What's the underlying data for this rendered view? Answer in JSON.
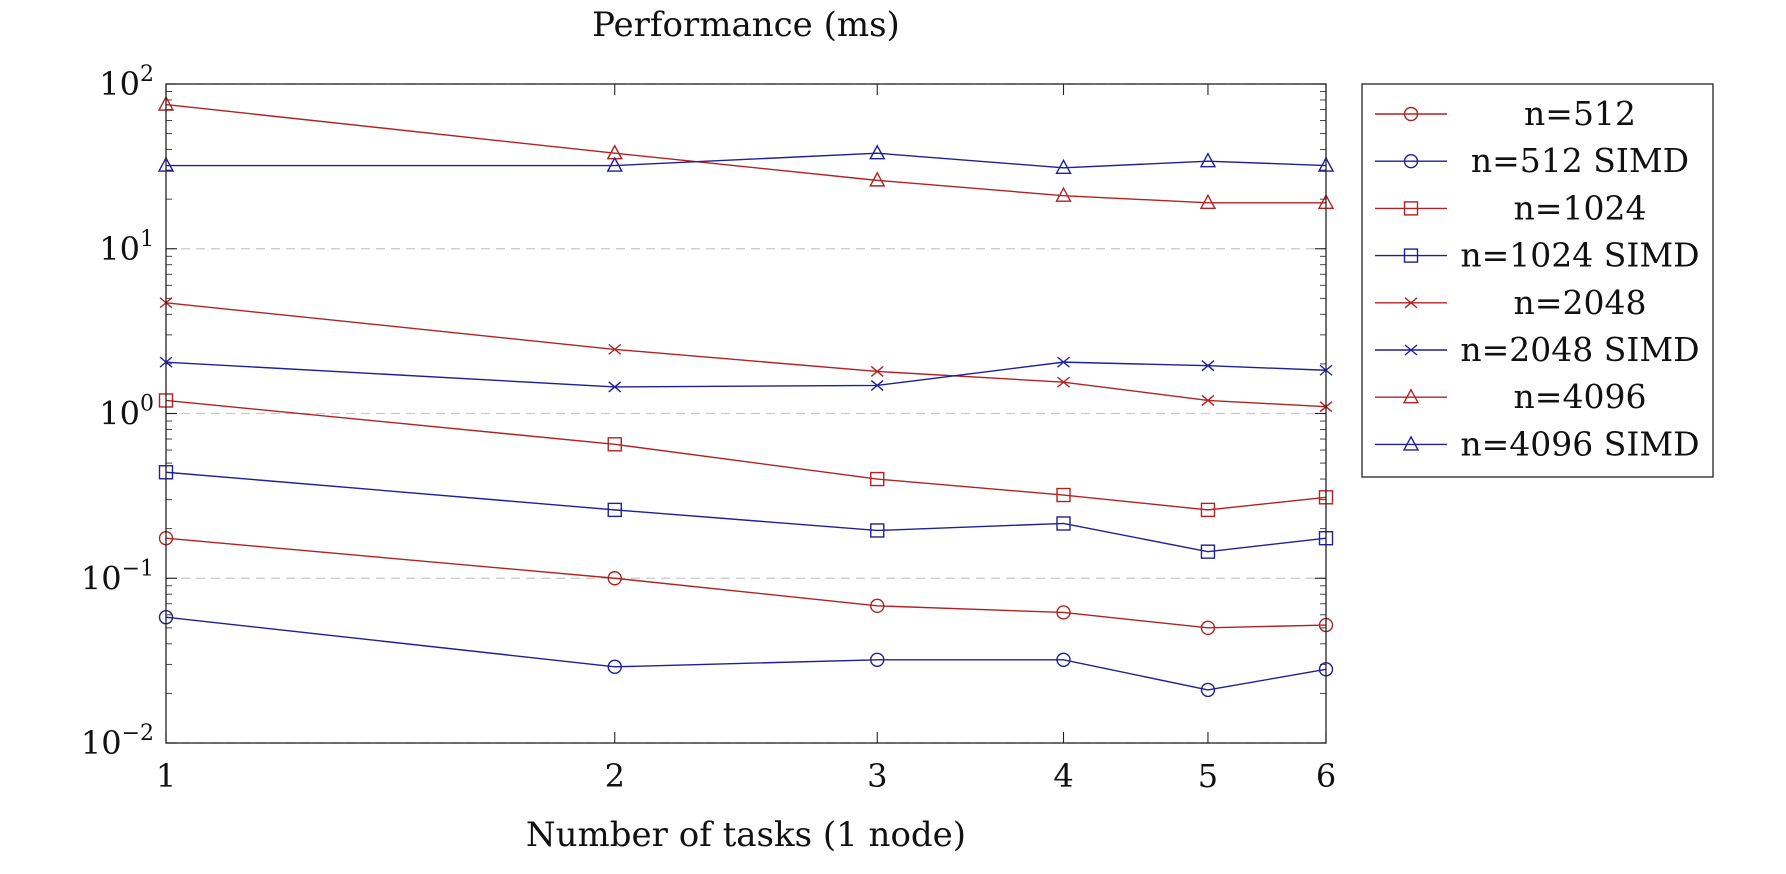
{
  "chart_data": {
    "type": "line",
    "title": "Performance (ms)",
    "xlabel": "Number of tasks (1 node)",
    "ylabel": "",
    "xscale": "log",
    "yscale": "log",
    "xlim": [
      1,
      6
    ],
    "ylim": [
      0.01,
      100
    ],
    "grid": "y-major-dashed",
    "legend_position": "outside-right",
    "x": [
      1,
      2,
      3,
      4,
      5,
      6
    ],
    "x_ticks": [
      1,
      2,
      3,
      4,
      5,
      6
    ],
    "x_tick_labels": [
      "1",
      "2",
      "3",
      "4",
      "5",
      "6"
    ],
    "y_ticks": [
      {
        "value": 100,
        "base": "10",
        "exp": "2"
      },
      {
        "value": 10,
        "base": "10",
        "exp": "1"
      },
      {
        "value": 1,
        "base": "10",
        "exp": "0"
      },
      {
        "value": 0.1,
        "base": "10",
        "exp": "−1"
      },
      {
        "value": 0.01,
        "base": "10",
        "exp": "−2"
      }
    ],
    "colors": {
      "plain": "#b22222",
      "simd": "#1f1f99"
    },
    "series": [
      {
        "name": "n=512",
        "marker": "circle",
        "color": "#b22222",
        "values": [
          0.175,
          0.1,
          0.068,
          0.062,
          0.05,
          0.052
        ]
      },
      {
        "name": "n=512 SIMD",
        "marker": "circle",
        "color": "#1f1f99",
        "values": [
          0.058,
          0.029,
          0.032,
          0.032,
          0.021,
          0.028
        ]
      },
      {
        "name": "n=1024",
        "marker": "square",
        "color": "#b22222",
        "values": [
          1.2,
          0.65,
          0.4,
          0.32,
          0.26,
          0.31
        ]
      },
      {
        "name": "n=1024 SIMD",
        "marker": "square",
        "color": "#1f1f99",
        "values": [
          0.44,
          0.26,
          0.195,
          0.215,
          0.145,
          0.175
        ]
      },
      {
        "name": "n=2048",
        "marker": "cross",
        "color": "#b22222",
        "values": [
          4.7,
          2.45,
          1.8,
          1.55,
          1.2,
          1.1
        ]
      },
      {
        "name": "n=2048 SIMD",
        "marker": "cross",
        "color": "#1f1f99",
        "values": [
          2.05,
          1.45,
          1.48,
          2.05,
          1.95,
          1.83
        ]
      },
      {
        "name": "n=4096",
        "marker": "triangle",
        "color": "#b22222",
        "values": [
          75,
          38,
          26,
          21,
          19,
          19
        ]
      },
      {
        "name": "n=4096 SIMD",
        "marker": "triangle",
        "color": "#1f1f99",
        "values": [
          32,
          32,
          38,
          31,
          34,
          32
        ]
      }
    ]
  }
}
